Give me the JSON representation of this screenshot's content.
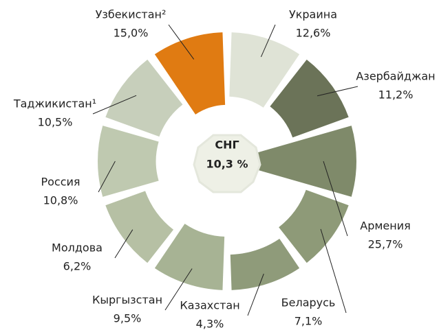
{
  "chart_data": {
    "type": "polar",
    "categories": [
      "Украина",
      "Азербайджан",
      "Армения",
      "Беларусь",
      "Казахстан",
      "Кыргызстан",
      "Молдова",
      "Россия",
      "Таджикистан¹",
      "Узбекистан²"
    ],
    "values": [
      12.6,
      11.2,
      25.7,
      7.1,
      4.3,
      9.5,
      6.2,
      10.8,
      10.5,
      15.0
    ],
    "value_labels": [
      "12,6%",
      "11,2%",
      "25,7%",
      "7,1%",
      "4,3%",
      "9,5%",
      "6,2%",
      "10,8%",
      "10,5%",
      "15,0%"
    ],
    "colors": [
      "#dfe3d6",
      "#6b7358",
      "#7f8a6a",
      "#8e9a78",
      "#8f9b7a",
      "#a7b394",
      "#b6c0a4",
      "#bfc9b0",
      "#c7cfbb",
      "#e07b12"
    ],
    "center": {
      "label": "СНГ",
      "value_label": "10,3 %"
    }
  }
}
